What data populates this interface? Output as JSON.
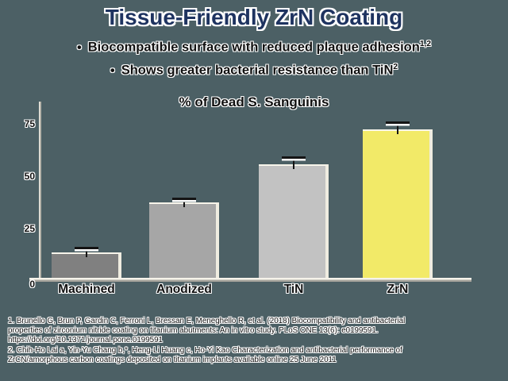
{
  "slide": {
    "title": "Tissue-Friendly ZrN Coating",
    "bullet_char": "•",
    "bullets": [
      {
        "text": "Biocompatible surface with reduced plaque adhesion",
        "sup": "1,2"
      },
      {
        "text": "Shows greater bacterial resistance than TiN",
        "sup": "2"
      }
    ]
  },
  "chart_data": {
    "type": "bar",
    "title": "% of Dead S. Sanguinis",
    "categories": [
      "Machined",
      "Anodized",
      "TiN",
      "ZrN"
    ],
    "values": [
      12,
      36,
      54,
      71
    ],
    "error_bars": [
      2,
      1.5,
      3,
      3
    ],
    "bar_colors": [
      "#808080",
      "#a6a6a6",
      "#c2c2c2",
      "#f2ea68"
    ],
    "yticks": [
      0,
      25,
      50,
      75
    ],
    "ylim": [
      0,
      80
    ],
    "xlabel": "",
    "ylabel": "",
    "grid": false,
    "legend": null
  },
  "footnotes": [
    {
      "lines": [
        "1. Brunello G, Brun P, Gardin C, Ferroni L, Bressan E, Meneghello R, et al. (2018) Biocompatibility and antibacterial",
        "properties of zirconium nitride coating on titanium abutments: An in vitro study. PLoS ONE 13(6): e0199591.",
        "https://doi.org/10.1371/journal.pone.0199591"
      ]
    },
    {
      "lines": [
        "2. Chih-Ho Lai a, Yin-Yu Chang b,*, Heng-Li Huang c, Ho-Yi Kao Characterization and antibacterial performance of",
        "ZrCN/amorphous carbon coatings deposited on titanium implants available online 25 June 2011"
      ]
    }
  ],
  "colors": {
    "background": "#4c6065",
    "title_text": "#1e3360",
    "body_text": "#101010",
    "halo": "#ffffff",
    "axis_light": "#f6f3ea",
    "axis_dark": "#a6a49c",
    "bar_shadow": "#efece0",
    "error_bar": "#141414"
  }
}
